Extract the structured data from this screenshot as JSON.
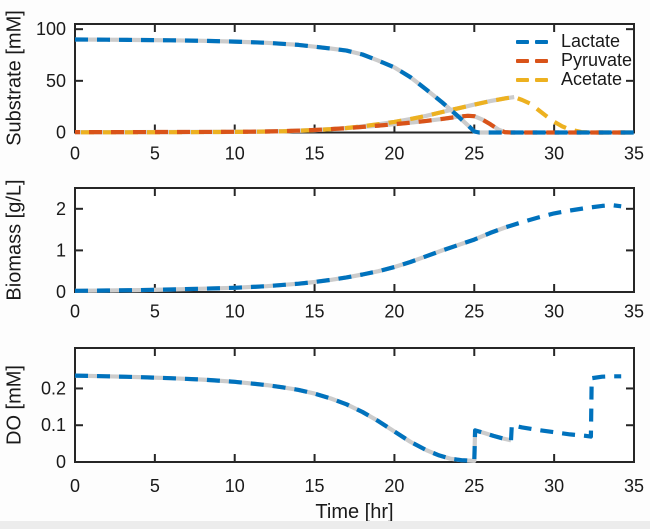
{
  "chart_data": {
    "type": "line",
    "title": "",
    "xlabel": "Time [hr]",
    "xlim": [
      0,
      35
    ],
    "xticks": [
      0,
      5,
      10,
      15,
      20,
      25,
      30,
      35
    ],
    "grid": false,
    "style": {
      "axis_color": "#262626",
      "text_color": "#1a1a1a",
      "model_line_color": "#CCCCCC",
      "line_style_note": "colored dashed simulation lines drawn over solid light-gray data lines; gray lines end near t=27"
    },
    "legend": {
      "position": "northeast",
      "frame": false,
      "entries": [
        "Lactate",
        "Pyruvate",
        "Acetate"
      ]
    },
    "subplots": [
      {
        "ylabel": "Substrate [mM]",
        "ylim": [
          0,
          105
        ],
        "yticks": [
          0,
          50,
          100
        ],
        "series": [
          {
            "name": "Lactate",
            "color": "#0072BD",
            "dash": "13 9",
            "dash_offset": 0,
            "gray_until": 27.3,
            "points": [
              [
                0,
                90
              ],
              [
                2,
                89.8
              ],
              [
                4,
                89.5
              ],
              [
                6,
                89.2
              ],
              [
                8,
                88.7
              ],
              [
                10,
                88
              ],
              [
                12,
                86.8
              ],
              [
                14,
                84.8
              ],
              [
                15,
                83
              ],
              [
                16,
                81.3
              ],
              [
                17,
                79.3
              ],
              [
                18,
                75.5
              ],
              [
                19,
                69.5
              ],
              [
                20,
                63
              ],
              [
                21,
                53.5
              ],
              [
                22,
                41.5
              ],
              [
                23,
                29
              ],
              [
                24,
                15.5
              ],
              [
                24.6,
                7
              ],
              [
                25,
                1
              ],
              [
                25.3,
                0
              ],
              [
                26,
                0
              ],
              [
                28,
                0
              ],
              [
                30,
                0
              ],
              [
                32,
                0
              ],
              [
                34,
                0
              ],
              [
                35,
                0
              ]
            ]
          },
          {
            "name": "Pyruvate",
            "color": "#D95319",
            "dash": "13 9",
            "dash_offset": 8,
            "gray_until": 27.3,
            "points": [
              [
                0,
                0.4
              ],
              [
                3,
                0.4
              ],
              [
                6,
                0.5
              ],
              [
                9,
                0.6
              ],
              [
                11,
                0.8
              ],
              [
                13,
                1.3
              ],
              [
                15,
                2.4
              ],
              [
                17,
                4.2
              ],
              [
                18,
                5.4
              ],
              [
                19,
                6.7
              ],
              [
                20,
                8
              ],
              [
                21,
                9.5
              ],
              [
                22,
                11.2
              ],
              [
                23,
                13.2
              ],
              [
                24,
                15.3
              ],
              [
                24.6,
                16.2
              ],
              [
                25,
                15.8
              ],
              [
                25.5,
                12.5
              ],
              [
                26,
                8
              ],
              [
                26.5,
                3
              ],
              [
                26.9,
                0.4
              ],
              [
                27.3,
                0
              ],
              [
                28,
                0
              ],
              [
                30,
                0
              ],
              [
                32,
                0
              ],
              [
                34,
                0
              ],
              [
                35,
                0
              ]
            ]
          },
          {
            "name": "Acetate",
            "color": "#EDB120",
            "dash": "13 9",
            "dash_offset": 16,
            "gray_until": 27.5,
            "points": [
              [
                0,
                0.2
              ],
              [
                3,
                0.2
              ],
              [
                6,
                0.3
              ],
              [
                9,
                0.5
              ],
              [
                11,
                0.7
              ],
              [
                13,
                1.2
              ],
              [
                15,
                2.3
              ],
              [
                16,
                3.2
              ],
              [
                17,
                4.4
              ],
              [
                18,
                6
              ],
              [
                19,
                8
              ],
              [
                20,
                10.3
              ],
              [
                21,
                13
              ],
              [
                22,
                16.2
              ],
              [
                23,
                19.8
              ],
              [
                24,
                23.4
              ],
              [
                25,
                27
              ],
              [
                26,
                30.4
              ],
              [
                27,
                33.2
              ],
              [
                27.5,
                34.3
              ],
              [
                28,
                31.5
              ],
              [
                28.5,
                28
              ],
              [
                29,
                22
              ],
              [
                29.5,
                16
              ],
              [
                30,
                10.5
              ],
              [
                30.5,
                6
              ],
              [
                31,
                2.8
              ],
              [
                31.7,
                0.4
              ],
              [
                32.2,
                0
              ],
              [
                33,
                0
              ],
              [
                34,
                0
              ],
              [
                35,
                0
              ]
            ]
          }
        ]
      },
      {
        "ylabel": "Biomass [g/L]",
        "ylim": [
          0,
          2.5
        ],
        "yticks": [
          0,
          1,
          2
        ],
        "series": [
          {
            "name": "Biomass",
            "color": "#0072BD",
            "dash": "13 9",
            "dash_offset": 0,
            "gray_until": 27.3,
            "points": [
              [
                0,
                0.03
              ],
              [
                2,
                0.035
              ],
              [
                4,
                0.045
              ],
              [
                6,
                0.06
              ],
              [
                8,
                0.08
              ],
              [
                10,
                0.1
              ],
              [
                12,
                0.14
              ],
              [
                14,
                0.2
              ],
              [
                15,
                0.24
              ],
              [
                16,
                0.29
              ],
              [
                17,
                0.35
              ],
              [
                18,
                0.42
              ],
              [
                19,
                0.5
              ],
              [
                20,
                0.6
              ],
              [
                21,
                0.72
              ],
              [
                22,
                0.86
              ],
              [
                23,
                1.0
              ],
              [
                24,
                1.13
              ],
              [
                25,
                1.26
              ],
              [
                26,
                1.42
              ],
              [
                27,
                1.56
              ],
              [
                28,
                1.68
              ],
              [
                29,
                1.79
              ],
              [
                30,
                1.89
              ],
              [
                31,
                1.96
              ],
              [
                32,
                2.02
              ],
              [
                33,
                2.07
              ],
              [
                33.6,
                2.09
              ],
              [
                34.2,
                2.06
              ]
            ]
          }
        ]
      },
      {
        "ylabel": "DO [mM]",
        "ylim": [
          0,
          0.31
        ],
        "yticks": [
          0,
          0.1,
          0.2
        ],
        "series": [
          {
            "name": "DO",
            "color": "#0072BD",
            "dash": "13 9",
            "dash_offset": 0,
            "gray_until": 27.3,
            "points": [
              [
                0,
                0.235
              ],
              [
                2,
                0.233
              ],
              [
                4,
                0.231
              ],
              [
                6,
                0.228
              ],
              [
                8,
                0.224
              ],
              [
                10,
                0.218
              ],
              [
                12,
                0.209
              ],
              [
                13,
                0.203
              ],
              [
                14,
                0.196
              ],
              [
                15,
                0.186
              ],
              [
                16,
                0.173
              ],
              [
                17,
                0.157
              ],
              [
                18,
                0.136
              ],
              [
                19,
                0.111
              ],
              [
                20,
                0.083
              ],
              [
                21,
                0.055
              ],
              [
                22,
                0.032
              ],
              [
                22.8,
                0.018
              ],
              [
                23.5,
                0.009
              ],
              [
                24.2,
                0.005
              ],
              [
                25,
                0.003
              ],
              [
                25.05,
                0.086
              ],
              [
                25.6,
                0.079
              ],
              [
                26.2,
                0.071
              ],
              [
                26.8,
                0.064
              ],
              [
                27.3,
                0.059
              ],
              [
                27.35,
                0.1
              ],
              [
                28,
                0.094
              ],
              [
                29,
                0.087
              ],
              [
                30,
                0.081
              ],
              [
                31,
                0.075
              ],
              [
                32,
                0.071
              ],
              [
                32.3,
                0.069
              ],
              [
                32.35,
                0.228
              ],
              [
                33,
                0.232
              ],
              [
                33.6,
                0.233
              ],
              [
                34.2,
                0.233
              ]
            ]
          }
        ]
      }
    ]
  }
}
